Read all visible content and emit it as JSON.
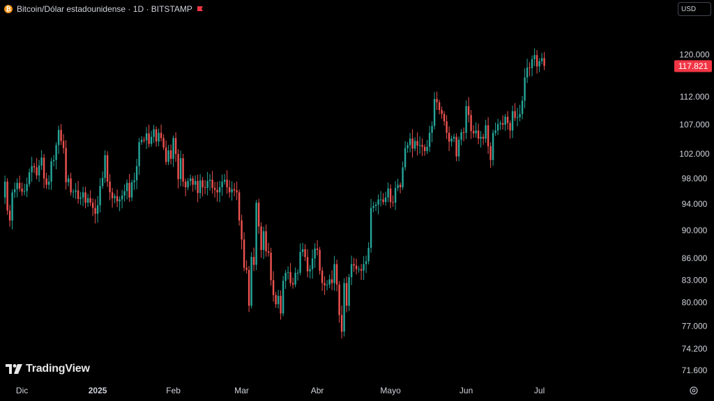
{
  "header": {
    "title": "Bitcoin/Dólar estadounidense · 1D · BITSTAMP",
    "icon": "bitcoin-icon",
    "flag_icon": "flag-icon"
  },
  "currency": {
    "label": "USD"
  },
  "brand": {
    "name": "TradingView"
  },
  "settings_icon": "gear-icon",
  "colors": {
    "up": "#26a69a",
    "down": "#ef5350",
    "background": "#000000",
    "price_tag": "#f23645"
  },
  "chart_data": {
    "type": "candlestick",
    "title": "",
    "xlabel": "",
    "ylabel": "",
    "scale": "log",
    "ylim": [
      70000,
      125000
    ],
    "y_ticks": [
      "120.000",
      "112.000",
      "107.000",
      "102.000",
      "98.000",
      "94.000",
      "90.000",
      "86.000",
      "83.000",
      "80.000",
      "77.000",
      "74.200",
      "71.600"
    ],
    "x_ticks": [
      "Dic",
      "2025",
      "Feb",
      "Mar",
      "Abr",
      "Mayo",
      "Jun",
      "Jul"
    ],
    "last_price": "117.821",
    "grid": false,
    "start": "2024-11-23",
    "closes": [
      95000,
      97500,
      93000,
      91500,
      95800,
      96300,
      97300,
      96400,
      95900,
      96000,
      97100,
      99000,
      100000,
      99800,
      98500,
      100100,
      101400,
      98000,
      97000,
      97500,
      100800,
      101000,
      103500,
      106100,
      104200,
      103000,
      97400,
      98000,
      95800,
      95900,
      96100,
      94800,
      95000,
      95800,
      94200,
      94900,
      94200,
      93400,
      92500,
      93800,
      96800,
      98100,
      101800,
      97500,
      95800,
      94900,
      95200,
      94400,
      94700,
      95300,
      96000,
      97300,
      95000,
      97400,
      97700,
      100000,
      104000,
      104400,
      104300,
      105500,
      103700,
      104900,
      106200,
      104100,
      105600,
      104700,
      103100,
      100700,
      102600,
      101200,
      104700,
      102000,
      97900,
      101300,
      97500,
      96600,
      97600,
      98000,
      97000,
      97600,
      95700,
      97700,
      96600,
      96500,
      97600,
      97800,
      96500,
      96200,
      95800,
      96600,
      97500,
      97800,
      96600,
      95800,
      96300,
      96100,
      95800,
      91500,
      88700,
      84700,
      84400,
      79600,
      86200,
      85100,
      94200,
      90600,
      87200,
      89900,
      87000,
      86800,
      83000,
      81000,
      79800,
      80900,
      78600,
      82900,
      84000,
      84100,
      82600,
      82400,
      84000,
      84000,
      86900,
      87300,
      86200,
      84200,
      84500,
      86000,
      87400,
      87200,
      84300,
      82600,
      82300,
      82400,
      83100,
      82600,
      85200,
      82400,
      78400,
      76300,
      82600,
      79600,
      83400,
      85200,
      85000,
      84500,
      84500,
      84300,
      85200,
      85600,
      87500,
      93400,
      93700,
      93900,
      94700,
      94700,
      94300,
      95000,
      96400,
      94300,
      94200,
      96500,
      97000,
      96600,
      99800,
      103000,
      103500,
      104600,
      102900,
      104200,
      103400,
      103500,
      103200,
      102500,
      103200,
      105600,
      106800,
      111600,
      111000,
      109600,
      108900,
      107600,
      105600,
      104100,
      104600,
      104900,
      101600,
      104400,
      105700,
      105600,
      110300,
      108700,
      105900,
      105500,
      106000,
      104600,
      104900,
      104600,
      106900,
      103300,
      101000,
      105600,
      106000,
      107100,
      107300,
      107000,
      108400,
      107300,
      106000,
      109400,
      108200,
      108300,
      108900,
      111300,
      115600,
      117500,
      117400,
      119100,
      119900,
      117700,
      118700,
      119300,
      117800
    ]
  }
}
